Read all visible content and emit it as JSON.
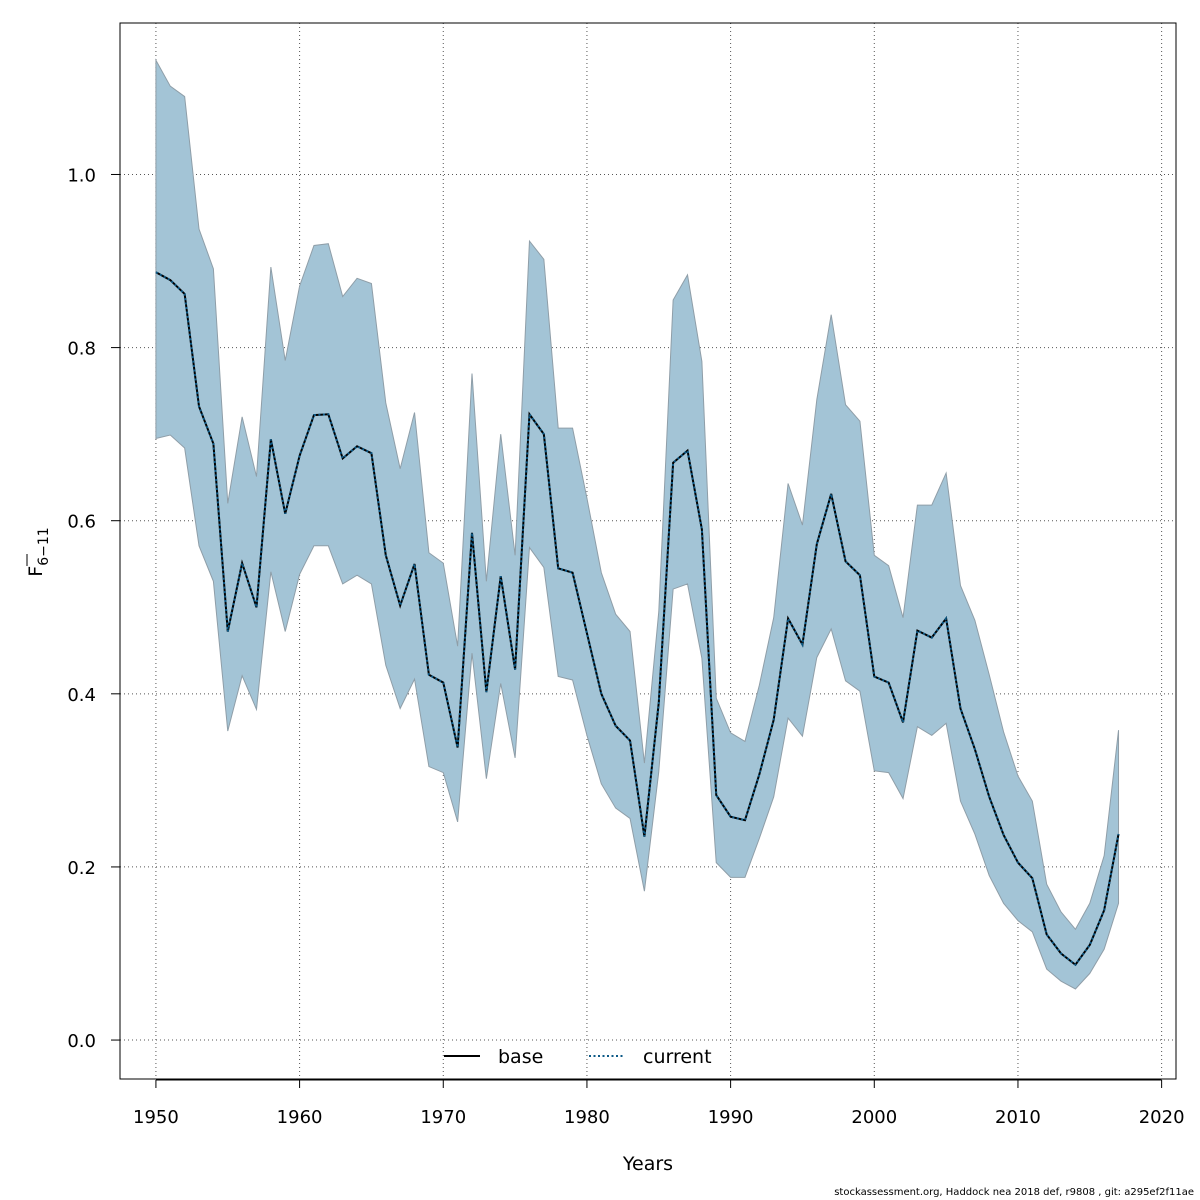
{
  "chart_data": {
    "type": "area",
    "xlabel": "Years",
    "ylabel_main": "F",
    "ylabel_sub": "6−11",
    "xlim": [
      1947.5,
      2021
    ],
    "ylim": [
      -0.045,
      1.175
    ],
    "x_ticks": [
      1950,
      1960,
      1970,
      1980,
      1990,
      2000,
      2010,
      2020
    ],
    "y_ticks": [
      0.0,
      0.2,
      0.4,
      0.6,
      0.8,
      1.0
    ],
    "y_tick_labels": [
      "0.0",
      "0.2",
      "0.4",
      "0.6",
      "0.8",
      "1.0"
    ],
    "grid": true,
    "legend_position": "bottom-center",
    "colors": {
      "band": "#a3c4d6",
      "band_edge": "#8f9ea8",
      "base": "#000000",
      "current": "#0d5a87",
      "grid": "#555555"
    },
    "x": [
      1950,
      1951,
      1952,
      1953,
      1954,
      1955,
      1956,
      1957,
      1958,
      1959,
      1960,
      1961,
      1962,
      1963,
      1964,
      1965,
      1966,
      1967,
      1968,
      1969,
      1970,
      1971,
      1972,
      1973,
      1974,
      1975,
      1976,
      1977,
      1978,
      1979,
      1980,
      1981,
      1982,
      1983,
      1984,
      1985,
      1986,
      1987,
      1988,
      1989,
      1990,
      1991,
      1992,
      1993,
      1994,
      1995,
      1996,
      1997,
      1998,
      1999,
      2000,
      2001,
      2002,
      2003,
      2004,
      2005,
      2006,
      2007,
      2008,
      2009,
      2010,
      2011,
      2012,
      2013,
      2014,
      2015,
      2016,
      2017
    ],
    "series": [
      {
        "name": "base",
        "style": "solid",
        "values": [
          0.887,
          0.878,
          0.862,
          0.732,
          0.689,
          0.472,
          0.551,
          0.5,
          0.694,
          0.608,
          0.675,
          0.722,
          0.723,
          0.672,
          0.686,
          0.678,
          0.56,
          0.502,
          0.55,
          0.422,
          0.413,
          0.338,
          0.586,
          0.402,
          0.536,
          0.428,
          0.723,
          0.7,
          0.545,
          0.54,
          0.47,
          0.4,
          0.363,
          0.346,
          0.235,
          0.39,
          0.667,
          0.681,
          0.59,
          0.283,
          0.258,
          0.254,
          0.307,
          0.37,
          0.487,
          0.457,
          0.573,
          0.631,
          0.553,
          0.537,
          0.42,
          0.413,
          0.367,
          0.473,
          0.465,
          0.487,
          0.383,
          0.336,
          0.281,
          0.237,
          0.205,
          0.187,
          0.122,
          0.1,
          0.087,
          0.11,
          0.15,
          0.238
        ]
      },
      {
        "name": "current",
        "style": "dotted",
        "values": [
          0.887,
          0.878,
          0.862,
          0.732,
          0.689,
          0.472,
          0.551,
          0.5,
          0.694,
          0.608,
          0.675,
          0.722,
          0.723,
          0.672,
          0.686,
          0.678,
          0.56,
          0.502,
          0.55,
          0.422,
          0.413,
          0.338,
          0.586,
          0.402,
          0.536,
          0.428,
          0.723,
          0.7,
          0.545,
          0.54,
          0.47,
          0.4,
          0.363,
          0.346,
          0.235,
          0.39,
          0.667,
          0.681,
          0.59,
          0.283,
          0.258,
          0.254,
          0.307,
          0.37,
          0.487,
          0.457,
          0.573,
          0.631,
          0.553,
          0.537,
          0.42,
          0.413,
          0.367,
          0.473,
          0.465,
          0.487,
          0.383,
          0.336,
          0.281,
          0.237,
          0.205,
          0.187,
          0.122,
          0.1,
          0.087,
          0.11,
          0.15,
          0.238
        ]
      }
    ],
    "band": {
      "upper": [
        1.132,
        1.102,
        1.09,
        0.937,
        0.891,
        0.62,
        0.72,
        0.651,
        0.893,
        0.785,
        0.871,
        0.918,
        0.92,
        0.859,
        0.88,
        0.874,
        0.736,
        0.66,
        0.725,
        0.563,
        0.551,
        0.455,
        0.77,
        0.53,
        0.7,
        0.56,
        0.923,
        0.902,
        0.707,
        0.707,
        0.626,
        0.54,
        0.492,
        0.472,
        0.32,
        0.495,
        0.855,
        0.884,
        0.784,
        0.395,
        0.355,
        0.345,
        0.41,
        0.488,
        0.643,
        0.595,
        0.74,
        0.838,
        0.734,
        0.715,
        0.56,
        0.548,
        0.488,
        0.618,
        0.618,
        0.655,
        0.525,
        0.485,
        0.422,
        0.356,
        0.305,
        0.276,
        0.18,
        0.148,
        0.128,
        0.158,
        0.213,
        0.358
      ],
      "lower": [
        0.695,
        0.699,
        0.684,
        0.571,
        0.53,
        0.357,
        0.421,
        0.382,
        0.541,
        0.472,
        0.538,
        0.571,
        0.571,
        0.527,
        0.537,
        0.527,
        0.433,
        0.383,
        0.417,
        0.316,
        0.309,
        0.252,
        0.447,
        0.302,
        0.412,
        0.326,
        0.569,
        0.546,
        0.42,
        0.416,
        0.352,
        0.296,
        0.268,
        0.256,
        0.172,
        0.31,
        0.521,
        0.527,
        0.441,
        0.205,
        0.188,
        0.188,
        0.233,
        0.281,
        0.372,
        0.351,
        0.442,
        0.475,
        0.415,
        0.403,
        0.311,
        0.309,
        0.279,
        0.362,
        0.352,
        0.366,
        0.276,
        0.238,
        0.19,
        0.158,
        0.138,
        0.125,
        0.082,
        0.068,
        0.059,
        0.077,
        0.105,
        0.158
      ]
    },
    "footer": "stockassessment.org, Haddock  nea  2018  def, r9808 , git: a295ef2f11ae"
  }
}
